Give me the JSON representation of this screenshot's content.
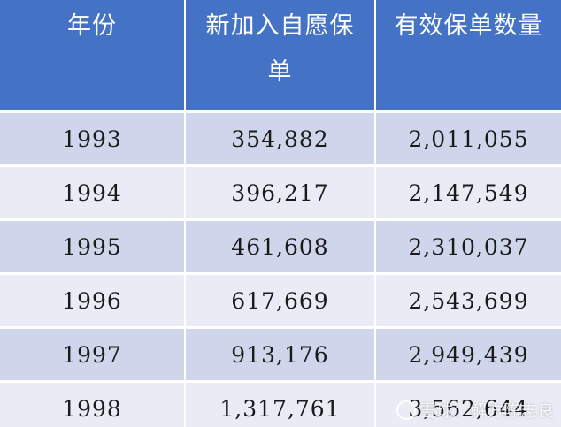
{
  "table": {
    "headers": [
      "年份",
      "新加入自愿保单",
      "有效保单数量"
    ],
    "rows": [
      [
        "1993",
        "354,882",
        "2,011,055"
      ],
      [
        "1994",
        "396,217",
        "2,147,549"
      ],
      [
        "1995",
        "461,608",
        "2,310,037"
      ],
      [
        "1996",
        "617,669",
        "2,543,699"
      ],
      [
        "1997",
        "913,176",
        "2,949,439"
      ],
      [
        "1998",
        "1,317,761",
        "3,562,644"
      ]
    ]
  },
  "watermark": {
    "text": "雪球：解方陈志良",
    "icon": "snowball-logo-icon"
  },
  "colors": {
    "header_bg": "#4472c4",
    "row_odd": "#cfd5ea",
    "row_even": "#e9ebf5"
  }
}
